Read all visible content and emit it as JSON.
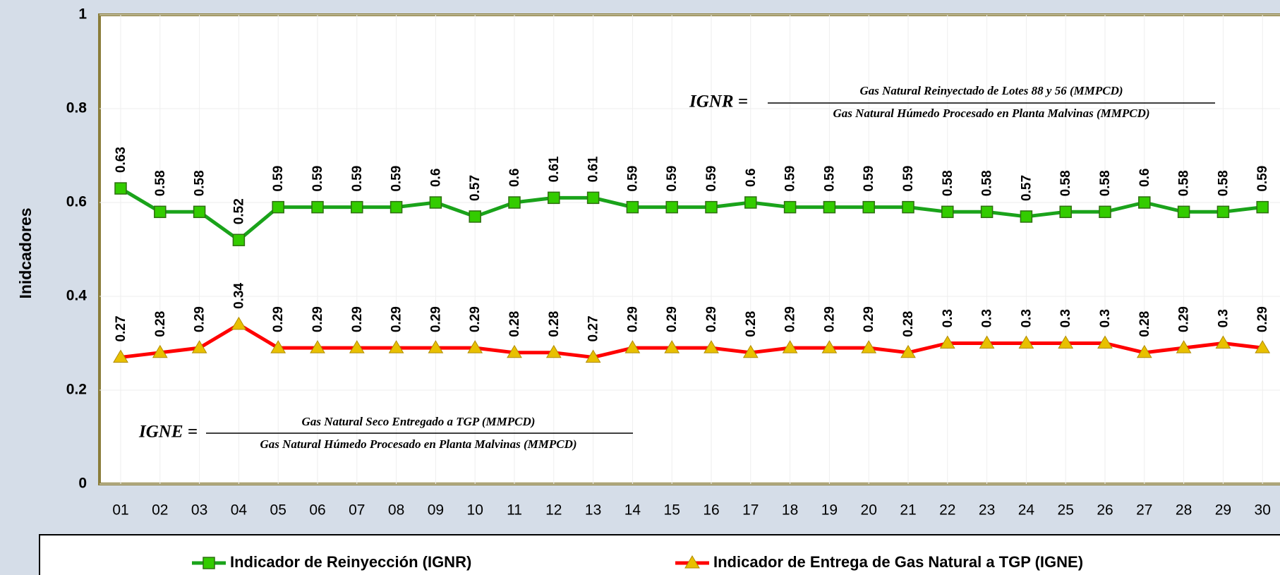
{
  "chart_data": {
    "type": "line",
    "y_label": "Inidcadores",
    "categories": [
      "01",
      "02",
      "03",
      "04",
      "05",
      "06",
      "07",
      "08",
      "09",
      "10",
      "11",
      "12",
      "13",
      "14",
      "15",
      "16",
      "17",
      "18",
      "19",
      "20",
      "21",
      "22",
      "23",
      "24",
      "25",
      "26",
      "27",
      "28",
      "29",
      "30"
    ],
    "series": [
      {
        "name": "Indicador de Reinyección (IGNR)",
        "color": "#1aa31a",
        "marker": "square",
        "marker_color": "#33cc00",
        "values": [
          0.63,
          0.58,
          0.58,
          0.52,
          0.59,
          0.59,
          0.59,
          0.59,
          0.6,
          0.57,
          0.6,
          0.61,
          0.61,
          0.59,
          0.59,
          0.59,
          0.6,
          0.59,
          0.59,
          0.59,
          0.59,
          0.58,
          0.58,
          0.57,
          0.58,
          0.58,
          0.6,
          0.58,
          0.58,
          0.59
        ]
      },
      {
        "name": "Indicador de Entrega de Gas Natural a TGP (IGNE)",
        "color": "#ff0000",
        "marker": "triangle",
        "marker_color": "#e8c000",
        "values": [
          0.27,
          0.28,
          0.29,
          0.34,
          0.29,
          0.29,
          0.29,
          0.29,
          0.29,
          0.29,
          0.28,
          0.28,
          0.27,
          0.29,
          0.29,
          0.29,
          0.28,
          0.29,
          0.29,
          0.29,
          0.28,
          0.3,
          0.3,
          0.3,
          0.3,
          0.3,
          0.28,
          0.29,
          0.3,
          0.29
        ]
      }
    ],
    "ylim": [
      0,
      1
    ],
    "yticks": [
      0,
      0.2,
      0.4,
      0.6,
      0.8,
      1
    ],
    "grid": true,
    "legend": "bottom",
    "annotations": [
      {
        "lhs": "IGNR =",
        "numerator": "Gas Natural Reinyectado de Lotes 88 y 56 (MMPCD)",
        "denominator": "Gas Natural Húmedo Procesado en Planta Malvinas (MMPCD)"
      },
      {
        "lhs": "IGNE =",
        "numerator": "Gas Natural Seco Entregado a TGP (MMPCD)",
        "denominator": "Gas Natural Húmedo Procesado en Planta Malvinas (MMPCD)"
      }
    ]
  }
}
